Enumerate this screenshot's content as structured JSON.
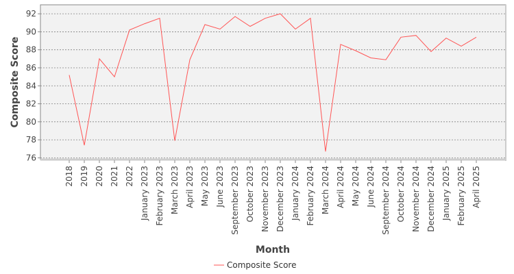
{
  "chart_data": {
    "type": "line",
    "categories": [
      "2018",
      "2019",
      "2020",
      "2021",
      "2022",
      "January 2023",
      "February 2023",
      "March 2023",
      "April 2023",
      "May 2023",
      "June 2023",
      "September 2023",
      "October 2023",
      "November 2023",
      "December 2023",
      "January 2024",
      "February 2024",
      "March 2024",
      "April 2024",
      "May 2024",
      "June 2024",
      "September 2024",
      "October 2024",
      "November 2024",
      "December 2024",
      "January 2025",
      "February 2025",
      "April 2025"
    ],
    "series": [
      {
        "name": "Composite Score",
        "values": [
          85.2,
          77.4,
          87.0,
          85.0,
          90.2,
          90.9,
          91.5,
          77.9,
          86.9,
          90.8,
          90.3,
          91.7,
          90.6,
          91.5,
          92.0,
          90.3,
          91.5,
          76.7,
          88.6,
          87.9,
          87.1,
          86.9,
          89.4,
          89.6,
          87.8,
          89.3,
          88.4,
          89.4
        ],
        "color": "#ff5555"
      }
    ],
    "xlabel": "Month",
    "ylabel": "Composite Score",
    "yticks": [
      76,
      78,
      80,
      82,
      84,
      86,
      88,
      90,
      92
    ],
    "ylim": [
      75.8,
      93.0
    ],
    "grid": true,
    "legend_position": "bottom-center",
    "colors": {
      "plot_background": "#f2f2f2",
      "grid": "#808080",
      "axis": "#888888"
    }
  }
}
